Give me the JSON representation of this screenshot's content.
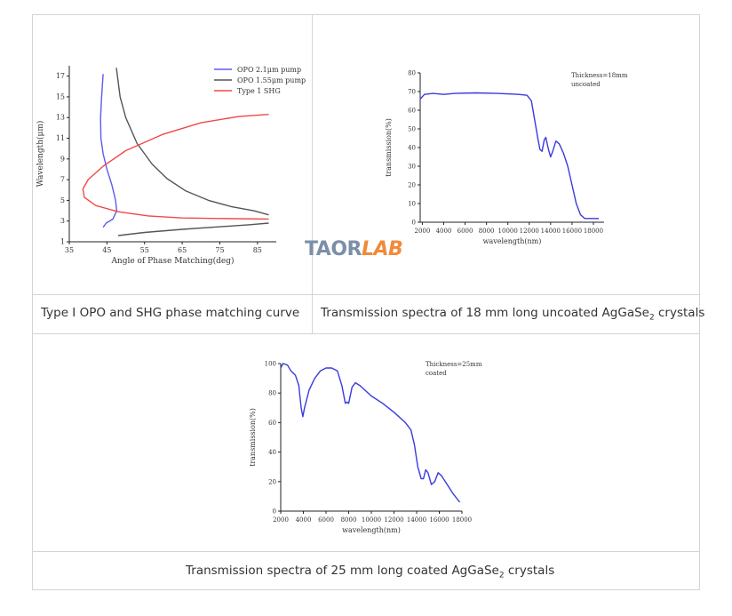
{
  "captions": {
    "top_left": "Type Ⅰ OPO and SHG phase matching curve",
    "top_right_pre": "Transmission spectra of 18 mm long uncoated AgGaSe",
    "top_right_sub": "2",
    "top_right_post": " crystals",
    "bottom_pre": "Transmission spectra of 25 mm long coated AgGaSe",
    "bottom_sub": "2",
    "bottom_post": " crystals"
  },
  "watermark": {
    "part1": "TAOR",
    "part2": "LAB"
  },
  "chart_data": [
    {
      "type": "line",
      "xlabel": "Angle of Phase Matching(deg)",
      "ylabel": "Wavelength(μm)",
      "xlim": [
        35,
        90
      ],
      "ylim": [
        1,
        18
      ],
      "xticks": [
        35,
        45,
        55,
        65,
        75,
        85
      ],
      "yticks": [
        1,
        3,
        5,
        7,
        9,
        11,
        13,
        15,
        17
      ],
      "legend_position": "top-right",
      "series": [
        {
          "name": "OPO 2.1μm pump",
          "color": "#5b5bf0",
          "points": [
            [
              44,
              17.2
            ],
            [
              43.6,
              15
            ],
            [
              43.3,
              13
            ],
            [
              43.4,
              11
            ],
            [
              44,
              9.5
            ],
            [
              45,
              8
            ],
            [
              46.3,
              6.5
            ],
            [
              47.3,
              5
            ],
            [
              47.6,
              4
            ],
            [
              46.6,
              3.2
            ],
            [
              44.8,
              2.8
            ],
            [
              44,
              2.4
            ]
          ]
        },
        {
          "name": "OPO 1.55μm pump",
          "color": "#555555",
          "points": [
            [
              47.5,
              17.8
            ],
            [
              48.5,
              15
            ],
            [
              50,
              13
            ],
            [
              53,
              10.5
            ],
            [
              57,
              8.5
            ],
            [
              61,
              7.1
            ],
            [
              66,
              5.9
            ],
            [
              72,
              5
            ],
            [
              78,
              4.4
            ],
            [
              84,
              4
            ],
            [
              88,
              3.6
            ]
          ]
        },
        {
          "name": "",
          "color": "#555555",
          "points": [
            [
              48,
              1.6
            ],
            [
              55,
              1.9
            ],
            [
              65,
              2.2
            ],
            [
              75,
              2.45
            ],
            [
              83,
              2.65
            ],
            [
              88,
              2.8
            ]
          ]
        },
        {
          "name": "Type 1 SHG",
          "color": "#f04848",
          "points": [
            [
              88,
              13.3
            ],
            [
              80,
              13.1
            ],
            [
              70,
              12.5
            ],
            [
              60,
              11.4
            ],
            [
              50,
              9.8
            ],
            [
              44,
              8.3
            ],
            [
              40,
              7
            ],
            [
              38.6,
              6.1
            ],
            [
              39,
              5.3
            ],
            [
              42,
              4.5
            ],
            [
              48,
              3.9
            ],
            [
              56,
              3.5
            ],
            [
              65,
              3.3
            ],
            [
              75,
              3.25
            ],
            [
              88,
              3.2
            ]
          ]
        }
      ]
    },
    {
      "type": "line",
      "xlabel": "wavelength(nm)",
      "ylabel": "transmission(%)",
      "annotation": [
        "Thickness=18mm",
        "uncoated"
      ],
      "xlim": [
        1800,
        19000
      ],
      "ylim": [
        0,
        80
      ],
      "xticks": [
        2000,
        4000,
        6000,
        8000,
        10000,
        12000,
        14000,
        16000,
        18000
      ],
      "yticks": [
        0,
        10,
        20,
        30,
        40,
        50,
        60,
        70,
        80
      ],
      "series": [
        {
          "name": "",
          "color": "#3a3ae0",
          "points": [
            [
              1800,
              66
            ],
            [
              2200,
              68.5
            ],
            [
              3000,
              69
            ],
            [
              4000,
              68.5
            ],
            [
              5000,
              69
            ],
            [
              7000,
              69.3
            ],
            [
              9000,
              69
            ],
            [
              11000,
              68.5
            ],
            [
              11800,
              68
            ],
            [
              12200,
              65
            ],
            [
              12500,
              55
            ],
            [
              12800,
              45
            ],
            [
              13000,
              39
            ],
            [
              13200,
              38
            ],
            [
              13400,
              44
            ],
            [
              13550,
              45.5
            ],
            [
              13800,
              39
            ],
            [
              14000,
              35
            ],
            [
              14200,
              38
            ],
            [
              14500,
              43.5
            ],
            [
              14800,
              42
            ],
            [
              15200,
              37
            ],
            [
              15600,
              30
            ],
            [
              16000,
              20
            ],
            [
              16400,
              10
            ],
            [
              16800,
              4
            ],
            [
              17200,
              2
            ],
            [
              17600,
              2
            ],
            [
              18000,
              2
            ],
            [
              18500,
              2
            ]
          ]
        }
      ]
    },
    {
      "type": "line",
      "xlabel": "wavelength(nm)",
      "ylabel": "transmission(%)",
      "annotation": [
        "Thickness=25mm",
        "coated"
      ],
      "xlim": [
        2000,
        18000
      ],
      "ylim": [
        0,
        100
      ],
      "xticks": [
        2000,
        4000,
        6000,
        8000,
        10000,
        12000,
        14000,
        16000,
        18000
      ],
      "yticks": [
        0,
        20,
        40,
        60,
        80,
        100
      ],
      "series": [
        {
          "name": "",
          "color": "#3a3ae0",
          "points": [
            [
              2000,
              97
            ],
            [
              2200,
              100
            ],
            [
              2600,
              99
            ],
            [
              2900,
              95
            ],
            [
              3300,
              92
            ],
            [
              3600,
              85
            ],
            [
              3800,
              70
            ],
            [
              3950,
              64
            ],
            [
              4100,
              70
            ],
            [
              4500,
              82
            ],
            [
              5000,
              90
            ],
            [
              5500,
              95
            ],
            [
              6000,
              97
            ],
            [
              6500,
              97
            ],
            [
              7000,
              95
            ],
            [
              7400,
              85
            ],
            [
              7700,
              73
            ],
            [
              7850,
              74
            ],
            [
              8000,
              73
            ],
            [
              8300,
              84
            ],
            [
              8600,
              87
            ],
            [
              9000,
              85
            ],
            [
              10000,
              78
            ],
            [
              11000,
              73
            ],
            [
              12000,
              67
            ],
            [
              13000,
              60
            ],
            [
              13500,
              55
            ],
            [
              13800,
              45
            ],
            [
              14100,
              30
            ],
            [
              14400,
              22
            ],
            [
              14600,
              22
            ],
            [
              14800,
              28
            ],
            [
              15000,
              26
            ],
            [
              15300,
              18
            ],
            [
              15600,
              20
            ],
            [
              15900,
              26
            ],
            [
              16200,
              24
            ],
            [
              16700,
              18
            ],
            [
              17200,
              12
            ],
            [
              17800,
              6
            ]
          ]
        }
      ]
    }
  ]
}
